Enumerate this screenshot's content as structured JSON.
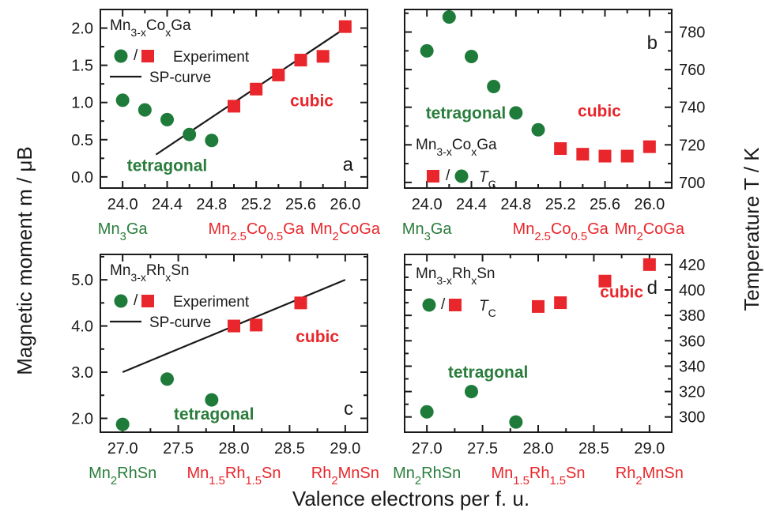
{
  "colors": {
    "green": "#1e7b3a",
    "red": "#e8262b",
    "text_green": "#2a7d3c",
    "text_red": "#e8262b",
    "ink": "#1a1a1a"
  },
  "figure": {
    "ylabel_left": "Magnetic moment  m / μB",
    "ylabel_right": "Temperature  T / K",
    "xlabel": "Valence electrons per f. u."
  },
  "chart_data": [
    {
      "type": "scatter",
      "panel": "a",
      "xlim": [
        23.8,
        26.2
      ],
      "ylim": [
        -0.15,
        2.25
      ],
      "x_ticks": [
        "24.0",
        "24.4",
        "24.8",
        "25.2",
        "25.6",
        "26.0"
      ],
      "y_ticks": [
        "0.0",
        "0.5",
        "1.0",
        "1.5",
        "2.0"
      ],
      "legend": {
        "compound": "Mn3-xCoxGa",
        "marker_sep": "/",
        "label": "Experiment",
        "line_label": "SP-curve"
      },
      "series": [
        {
          "marker": "circle",
          "color": "green",
          "x": [
            24.0,
            24.2,
            24.4,
            24.6,
            24.8
          ],
          "y": [
            1.03,
            0.9,
            0.77,
            0.57,
            0.49
          ]
        },
        {
          "marker": "square",
          "color": "red",
          "x": [
            25.0,
            25.2,
            25.4,
            25.6,
            25.8,
            26.0
          ],
          "y": [
            0.95,
            1.18,
            1.37,
            1.57,
            1.62,
            2.02
          ]
        }
      ],
      "line": {
        "x": [
          24.3,
          26.0
        ],
        "y": [
          0.3,
          2.0
        ]
      },
      "annotations": [
        {
          "text": "cubic",
          "color": "red",
          "x": 25.7,
          "y": 0.95
        },
        {
          "text": "tetragonal",
          "color": "green",
          "x": 24.4,
          "y": 0.08
        }
      ],
      "compounds": [
        {
          "main": "Mn",
          "sub1": "3",
          "mid": "Ga",
          "sub2": "",
          "end": "",
          "sub3": "",
          "tail": "",
          "color": "green",
          "x": 24.0
        },
        {
          "main": "Mn",
          "sub1": "2.5",
          "mid": "Co",
          "sub2": "0.5",
          "end": "Ga",
          "sub3": "",
          "tail": "",
          "color": "red",
          "x": 25.2
        },
        {
          "main": "Mn",
          "sub1": "2",
          "mid": "CoGa",
          "sub2": "",
          "end": "",
          "sub3": "",
          "tail": "",
          "color": "red",
          "x": 26.0
        }
      ]
    },
    {
      "type": "scatter",
      "panel": "b",
      "xlim": [
        23.8,
        26.2
      ],
      "ylim": [
        697,
        792
      ],
      "x_ticks": [
        "24.0",
        "24.4",
        "24.8",
        "25.2",
        "25.6",
        "26.0"
      ],
      "y_ticks": [
        "700",
        "720",
        "740",
        "760",
        "780"
      ],
      "legend": {
        "compound": "Mn3-xCoxGa",
        "marker_sep": "/",
        "label": "TC"
      },
      "series": [
        {
          "marker": "circle",
          "color": "green",
          "x": [
            24.0,
            24.2,
            24.4,
            24.6,
            24.8,
            25.0
          ],
          "y": [
            770,
            788,
            767,
            751,
            737,
            728
          ]
        },
        {
          "marker": "square",
          "color": "red",
          "x": [
            25.2,
            25.4,
            25.6,
            25.8,
            26.0
          ],
          "y": [
            718,
            715,
            714,
            714,
            719
          ]
        }
      ],
      "annotations": [
        {
          "text": "tetragonal",
          "color": "green",
          "x": 24.35,
          "y": 734
        },
        {
          "text": "cubic",
          "color": "red",
          "x": 25.55,
          "y": 735
        }
      ],
      "compounds": [
        {
          "main": "Mn",
          "sub1": "3",
          "mid": "Ga",
          "sub2": "",
          "end": "",
          "sub3": "",
          "tail": "",
          "color": "green",
          "x": 24.0
        },
        {
          "main": "Mn",
          "sub1": "2.5",
          "mid": "Co",
          "sub2": "0.5",
          "end": "Ga",
          "sub3": "",
          "tail": "",
          "color": "red",
          "x": 25.2
        },
        {
          "main": "Mn",
          "sub1": "2",
          "mid": "CoGa",
          "sub2": "",
          "end": "",
          "sub3": "",
          "tail": "",
          "color": "red",
          "x": 26.0
        }
      ]
    },
    {
      "type": "scatter",
      "panel": "c",
      "xlim": [
        26.8,
        29.2
      ],
      "ylim": [
        1.7,
        5.55
      ],
      "x_ticks": [
        "27.0",
        "27.5",
        "28.0",
        "28.5",
        "29.0"
      ],
      "y_ticks": [
        "2.0",
        "3.0",
        "4.0",
        "5.0"
      ],
      "legend": {
        "compound": "Mn3-xRhxSn",
        "marker_sep": "/",
        "label": "Experiment",
        "line_label": "SP-curve"
      },
      "series": [
        {
          "marker": "circle",
          "color": "green",
          "x": [
            27.0,
            27.4,
            27.8
          ],
          "y": [
            1.87,
            2.85,
            2.4
          ]
        },
        {
          "marker": "square",
          "color": "red",
          "x": [
            28.0,
            28.2,
            28.6
          ],
          "y": [
            4.0,
            4.02,
            4.5
          ]
        }
      ],
      "line": {
        "x": [
          27.0,
          29.0
        ],
        "y": [
          3.0,
          5.0
        ]
      },
      "annotations": [
        {
          "text": "cubic",
          "color": "red",
          "x": 28.75,
          "y": 3.65
        },
        {
          "text": "tetragonal",
          "color": "green",
          "x": 27.82,
          "y": 1.97
        }
      ],
      "compounds": [
        {
          "main": "Mn",
          "sub1": "2",
          "mid": "RhSn",
          "sub2": "",
          "end": "",
          "sub3": "",
          "tail": "",
          "color": "green",
          "x": 27.0
        },
        {
          "main": "Mn",
          "sub1": "1.5",
          "mid": "Rh",
          "sub2": "1.5",
          "end": "Sn",
          "sub3": "",
          "tail": "",
          "color": "red",
          "x": 28.0
        },
        {
          "main": "Rh",
          "sub1": "2",
          "mid": "MnSn",
          "sub2": "",
          "end": "",
          "sub3": "",
          "tail": "",
          "color": "red",
          "x": 29.0
        }
      ]
    },
    {
      "type": "scatter",
      "panel": "d",
      "xlim": [
        26.8,
        29.2
      ],
      "ylim": [
        288,
        428
      ],
      "x_ticks": [
        "27.0",
        "27.5",
        "28.0",
        "28.5",
        "29.0"
      ],
      "y_ticks": [
        "300",
        "320",
        "340",
        "360",
        "380",
        "400",
        "420"
      ],
      "legend": {
        "compound": "Mn3-xRhxSn",
        "marker_sep": "/",
        "label": "TC"
      },
      "series": [
        {
          "marker": "circle",
          "color": "green",
          "x": [
            27.0,
            27.4,
            27.8
          ],
          "y": [
            304,
            320,
            296
          ]
        },
        {
          "marker": "square",
          "color": "red",
          "x": [
            28.0,
            28.2,
            28.6,
            29.0
          ],
          "y": [
            387,
            390,
            407,
            420
          ]
        }
      ],
      "annotations": [
        {
          "text": "tetragonal",
          "color": "green",
          "x": 27.55,
          "y": 331
        },
        {
          "text": "cubic",
          "color": "red",
          "x": 28.75,
          "y": 394
        }
      ],
      "compounds": [
        {
          "main": "Mn",
          "sub1": "2",
          "mid": "RhSn",
          "sub2": "",
          "end": "",
          "sub3": "",
          "tail": "",
          "color": "green",
          "x": 27.0
        },
        {
          "main": "Mn",
          "sub1": "1.5",
          "mid": "Rh",
          "sub2": "1.5",
          "end": "Sn",
          "sub3": "",
          "tail": "",
          "color": "red",
          "x": 28.0
        },
        {
          "main": "Rh",
          "sub1": "2",
          "mid": "MnSn",
          "sub2": "",
          "end": "",
          "sub3": "",
          "tail": "",
          "color": "red",
          "x": 29.0
        }
      ]
    }
  ]
}
